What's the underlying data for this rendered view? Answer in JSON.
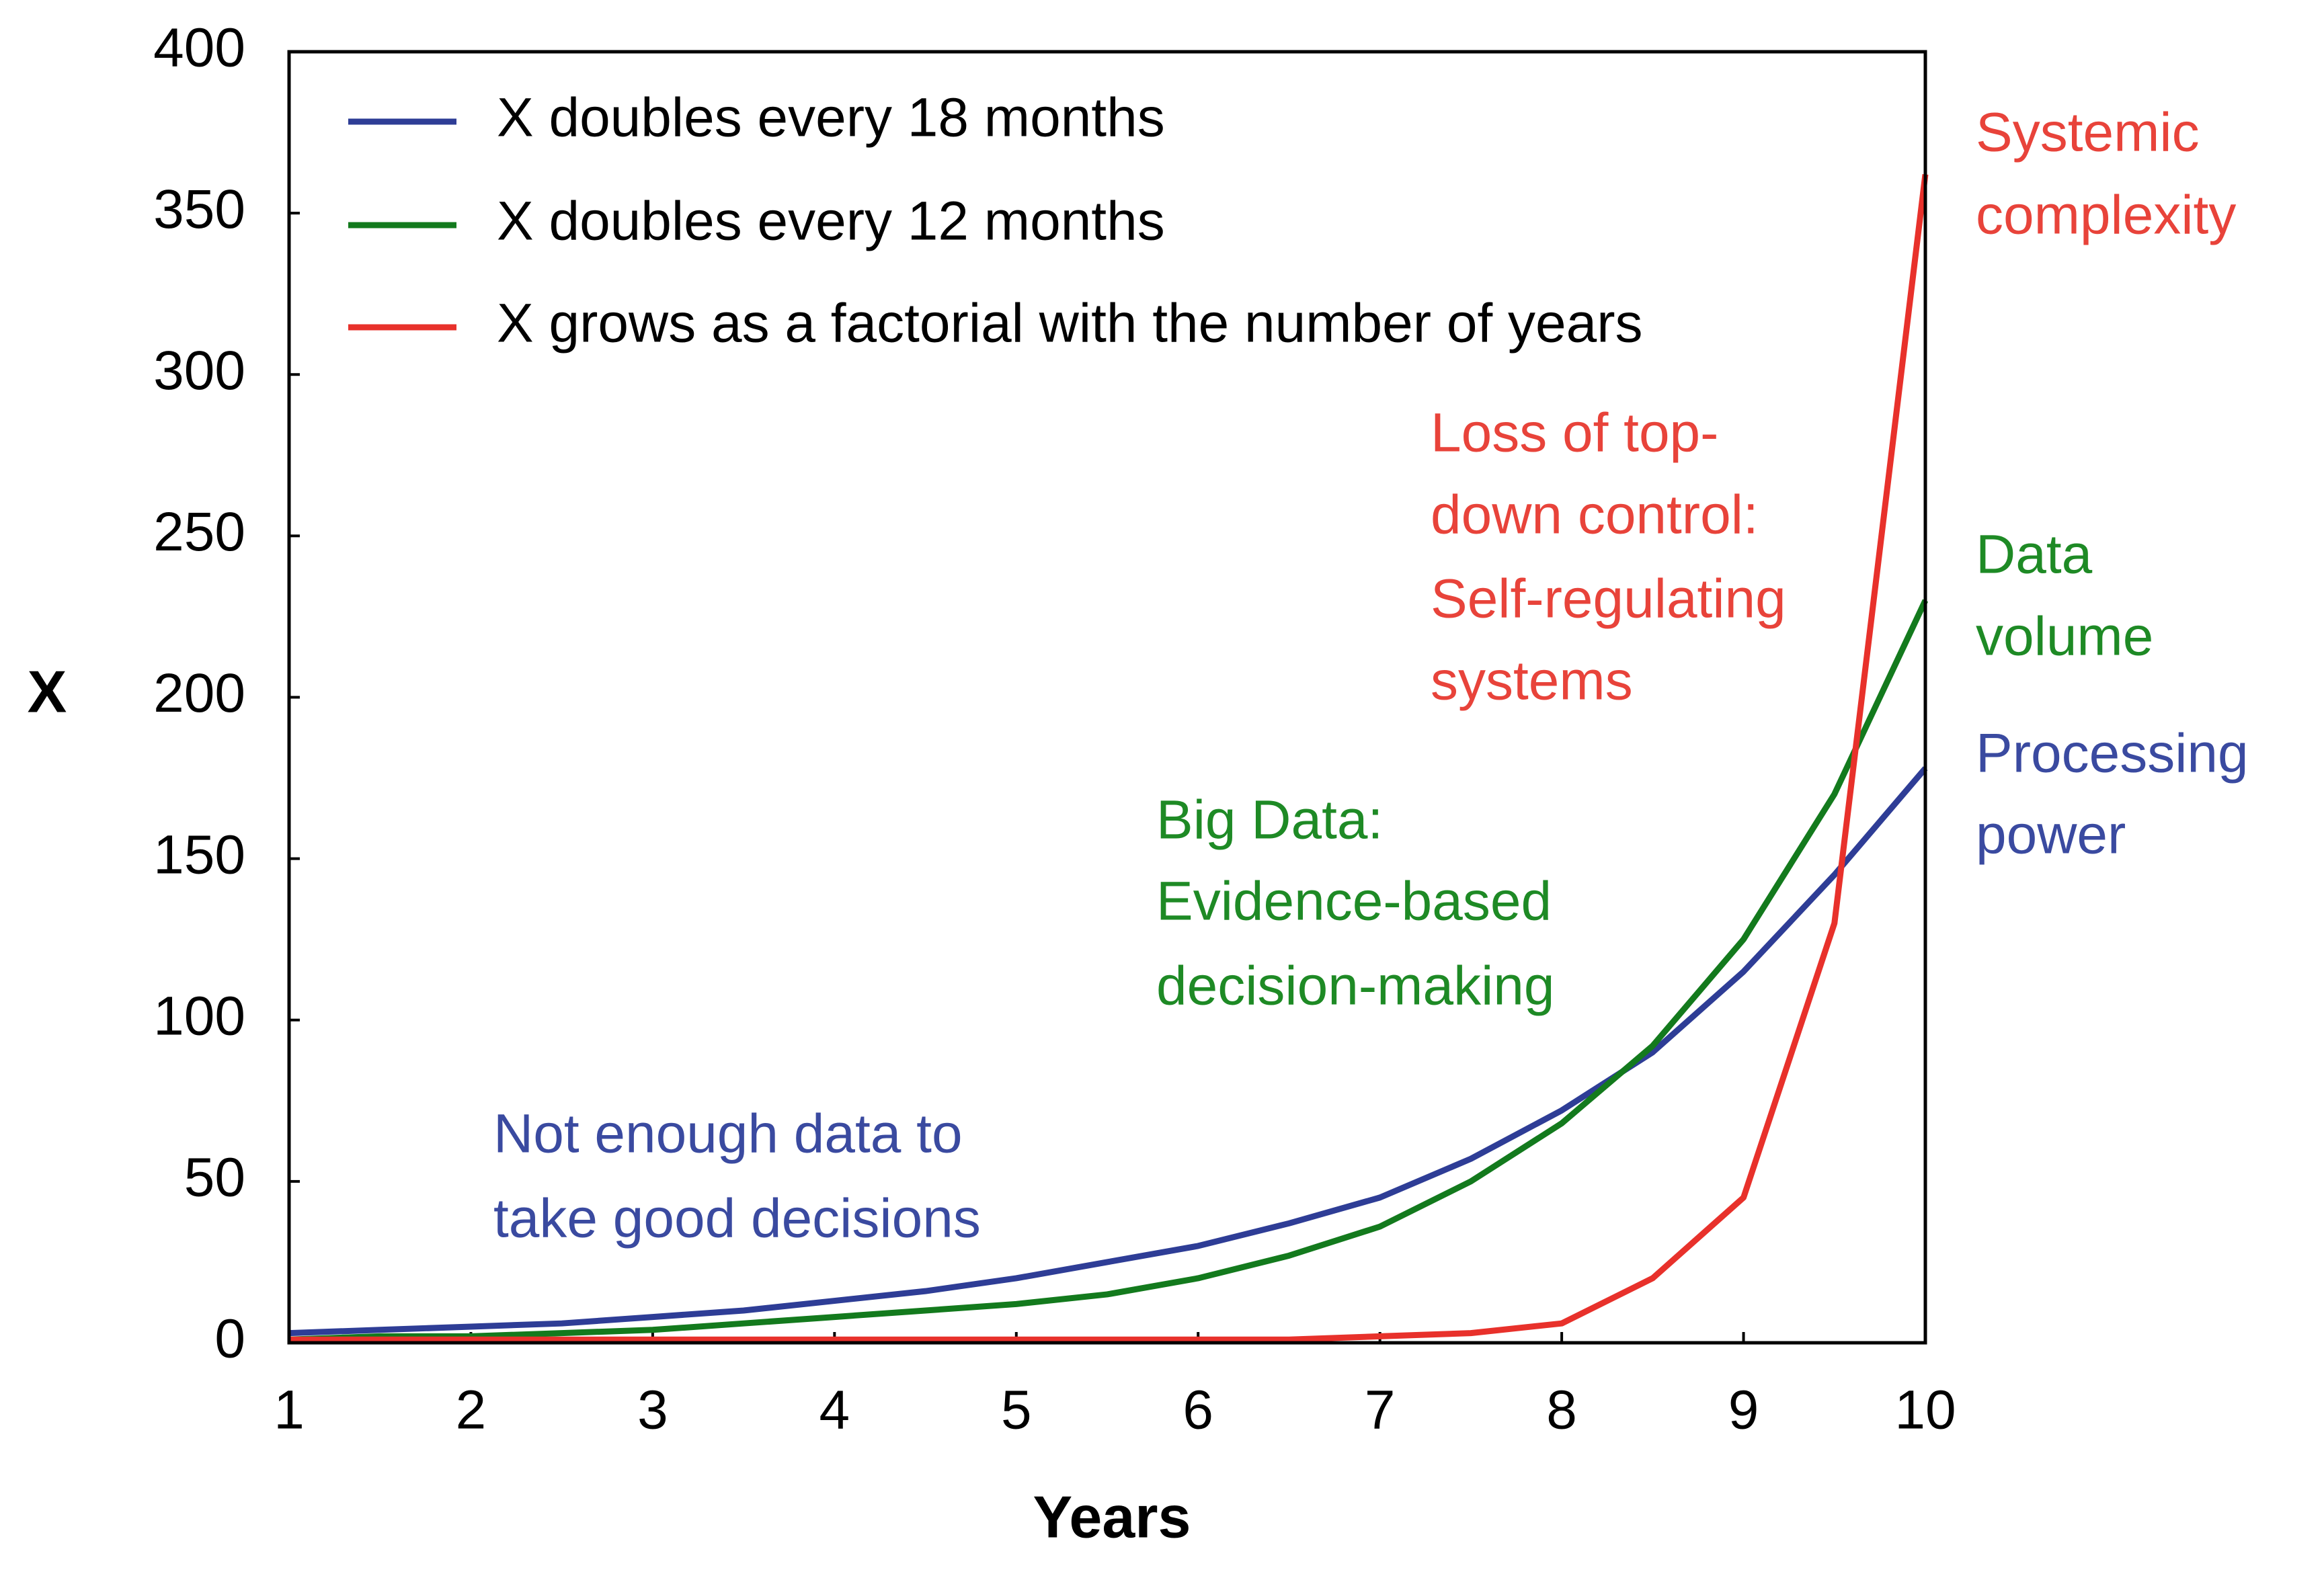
{
  "chart_data": {
    "type": "line",
    "x_label": "Years",
    "y_label": "X",
    "x": [
      1,
      1.5,
      2,
      2.5,
      3,
      3.5,
      4,
      4.5,
      5,
      5.5,
      6,
      6.5,
      7,
      7.5,
      8,
      8.5,
      9,
      9.5,
      10
    ],
    "series": [
      {
        "name": "X doubles every 18 months",
        "color": "#2e3d96",
        "values": [
          3,
          4,
          5,
          6,
          8,
          10,
          13,
          16,
          20,
          25,
          30,
          37,
          45,
          57,
          72,
          90,
          115,
          145,
          178
        ]
      },
      {
        "name": "X doubles every 12 months",
        "color": "#137a1d",
        "values": [
          1,
          2,
          2,
          3,
          4,
          6,
          8,
          10,
          12,
          15,
          20,
          27,
          36,
          50,
          68,
          92,
          125,
          170,
          230
        ]
      },
      {
        "name": "X grows as a factorial with the number of years",
        "color": "#e8312b",
        "values": [
          1,
          1,
          1,
          1,
          1,
          1,
          1,
          1,
          1,
          1,
          1,
          1,
          2,
          3,
          6,
          20,
          45,
          130,
          362
        ]
      }
    ],
    "xlim": [
      1,
      10
    ],
    "xticks": [
      1,
      2,
      3,
      4,
      5,
      6,
      7,
      8,
      9,
      10
    ],
    "ylim": [
      0,
      400
    ],
    "yticks": [
      0,
      50,
      100,
      150,
      200,
      250,
      300,
      350,
      400
    ],
    "grid": false,
    "legend": "upper left",
    "annotations": [
      {
        "lines": [
          "Systemic",
          "complexity"
        ],
        "color": "#e8433a"
      },
      {
        "lines": [
          "Loss of top-",
          "down control:",
          "Self-regulating",
          "systems"
        ],
        "color": "#e8433a"
      },
      {
        "lines": [
          "Data",
          "volume"
        ],
        "color": "#1e8a25"
      },
      {
        "lines": [
          "Processing",
          "power"
        ],
        "color": "#3a4aa0"
      },
      {
        "lines": [
          "Big Data:",
          "Evidence-based",
          "decision-making"
        ],
        "color": "#1e8a25"
      },
      {
        "lines": [
          "Not enough data to",
          "take good decisions"
        ],
        "color": "#3a4aa0"
      }
    ]
  }
}
